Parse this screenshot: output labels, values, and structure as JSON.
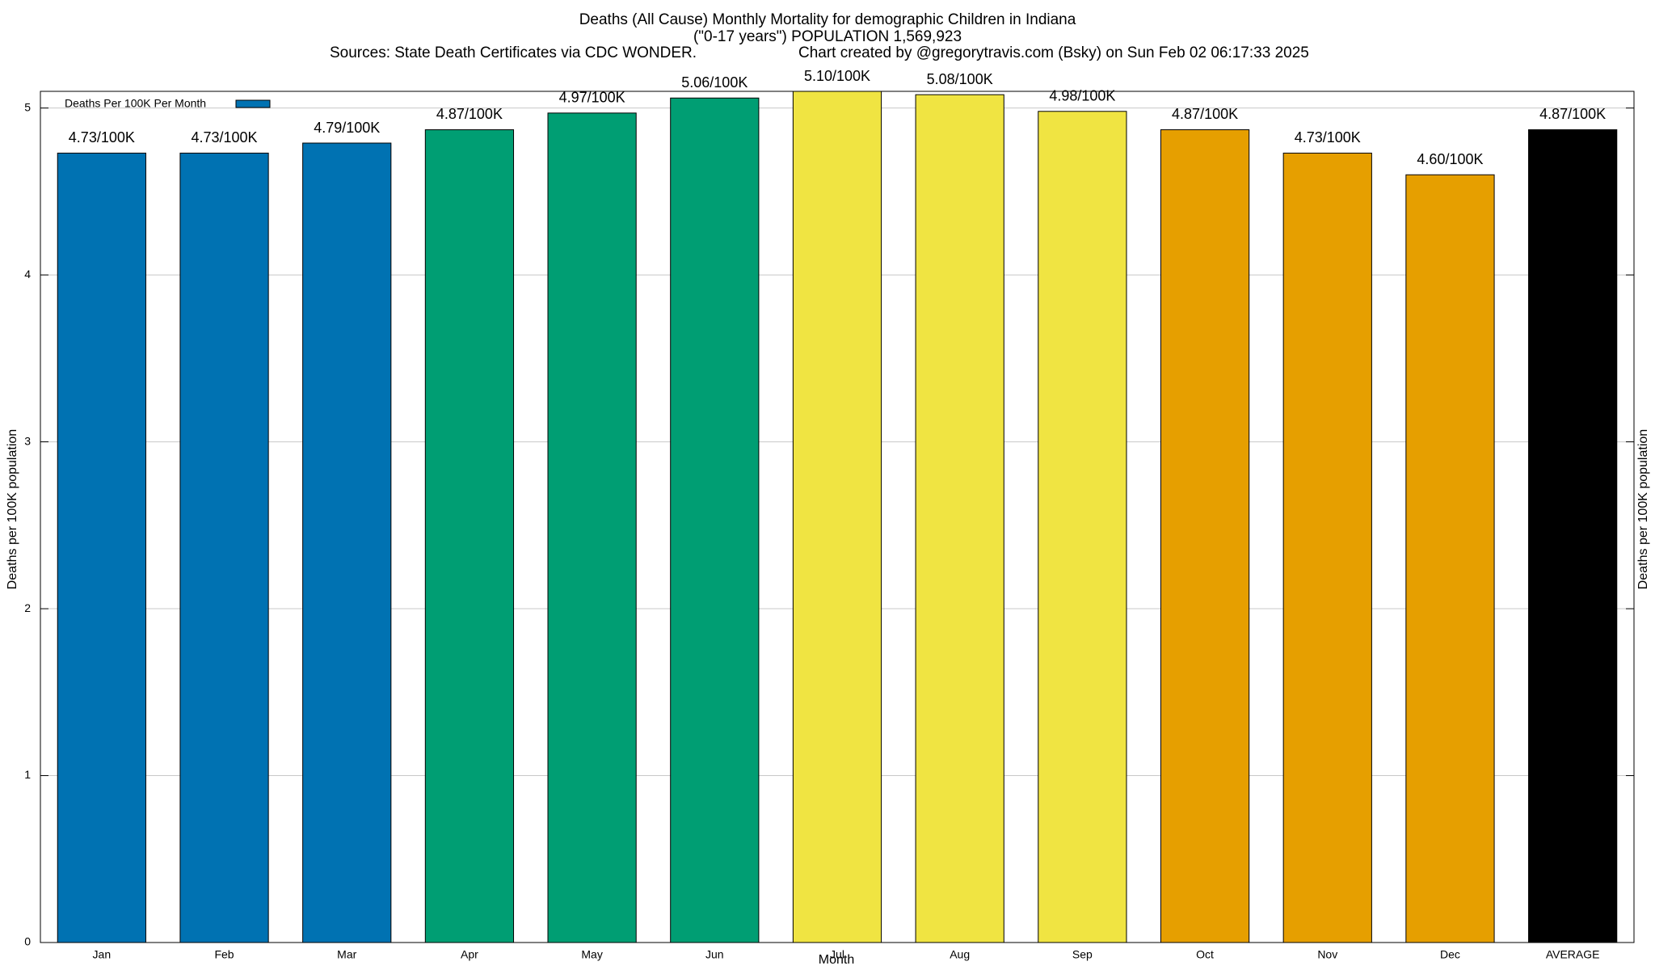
{
  "chart_data": {
    "type": "bar",
    "title": "Deaths (All Cause) Monthly Mortality for demographic Children in Indiana",
    "subtitle": "(\"0-17 years\") POPULATION 1,569,923",
    "source": "Sources: State Death Certificates via CDC WONDER.",
    "credit": "Chart created by @gregorytravis.com (Bsky) on Sun Feb 02 06:17:33 2025",
    "x_label": "Month",
    "y_label": "Deaths per 100K population",
    "y2_label": "Deaths per 100K population",
    "categories": [
      "Jan",
      "Feb",
      "Mar",
      "Apr",
      "May",
      "Jun",
      "Jul",
      "Aug",
      "Sep",
      "Oct",
      "Nov",
      "Dec",
      "AVERAGE"
    ],
    "series": [
      {
        "name": "Deaths Per 100K Per Month",
        "color": "#0072b2",
        "values": [
          4.73,
          4.73,
          4.79,
          4.87,
          4.97,
          5.06,
          5.1,
          5.08,
          4.98,
          4.87,
          4.73,
          4.6,
          4.87
        ],
        "value_labels": [
          "4.73/100K",
          "4.73/100K",
          "4.79/100K",
          "4.87/100K",
          "4.97/100K",
          "5.06/100K",
          "5.10/100K",
          "5.08/100K",
          "4.98/100K",
          "4.87/100K",
          "4.73/100K",
          "4.60/100K",
          "4.87/100K"
        ],
        "colors": [
          "#0072b2",
          "#0072b2",
          "#0072b2",
          "#009e73",
          "#009e73",
          "#009e73",
          "#f0e442",
          "#f0e442",
          "#f0e442",
          "#e69f00",
          "#e69f00",
          "#e69f00",
          "#000000"
        ]
      }
    ],
    "ylim": [
      0,
      5.1
    ],
    "yticks": [
      0,
      1,
      2,
      3,
      4,
      5
    ],
    "grid": true,
    "legend": "top-left"
  }
}
